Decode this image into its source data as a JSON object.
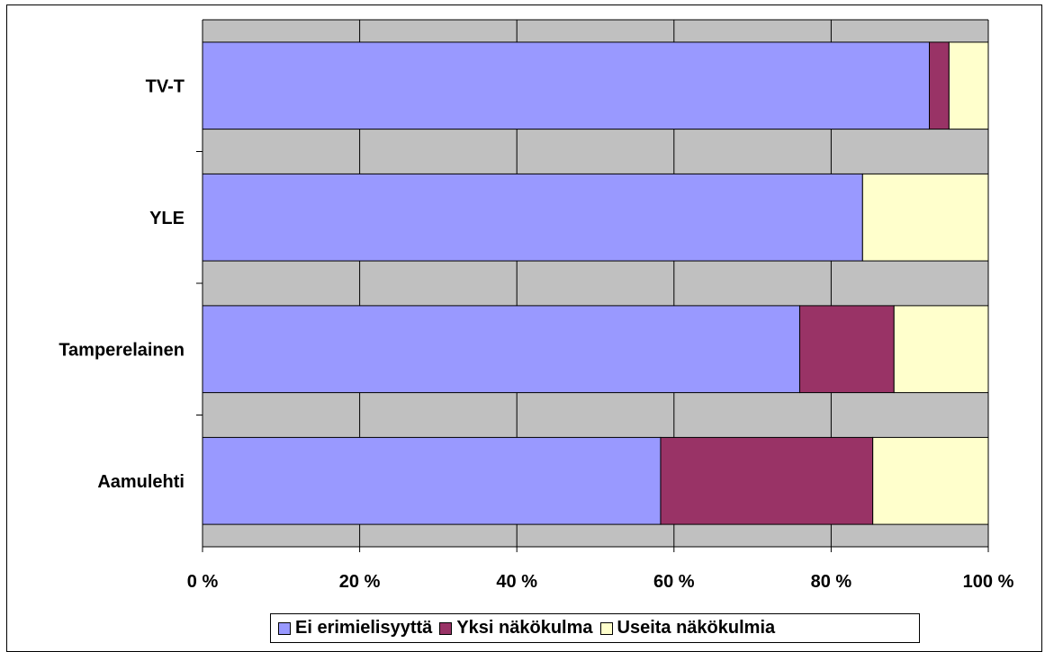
{
  "chart_data": {
    "type": "bar",
    "orientation": "horizontal",
    "stacked": "percent",
    "categories": [
      "TV-T",
      "YLE",
      "Tamperelainen",
      "Aamulehti"
    ],
    "series": [
      {
        "name": "Ei erimielisyyttä",
        "color": "#9999FF",
        "values": [
          92.5,
          84,
          76,
          58.3
        ]
      },
      {
        "name": "Yksi näkökulma",
        "color": "#993366",
        "values": [
          2.5,
          0,
          12,
          27
        ]
      },
      {
        "name": "Useita näkökulmia",
        "color": "#FFFFCC",
        "values": [
          5,
          16,
          12,
          14.7
        ]
      }
    ],
    "xticks": [
      "0 %",
      "20 %",
      "40 %",
      "60 %",
      "80 %",
      "100 %"
    ],
    "xlim": [
      0,
      100
    ],
    "plot_background": "#C0C0C0",
    "grid": true,
    "legend_position": "bottom",
    "title": "",
    "xlabel": "",
    "ylabel": ""
  }
}
